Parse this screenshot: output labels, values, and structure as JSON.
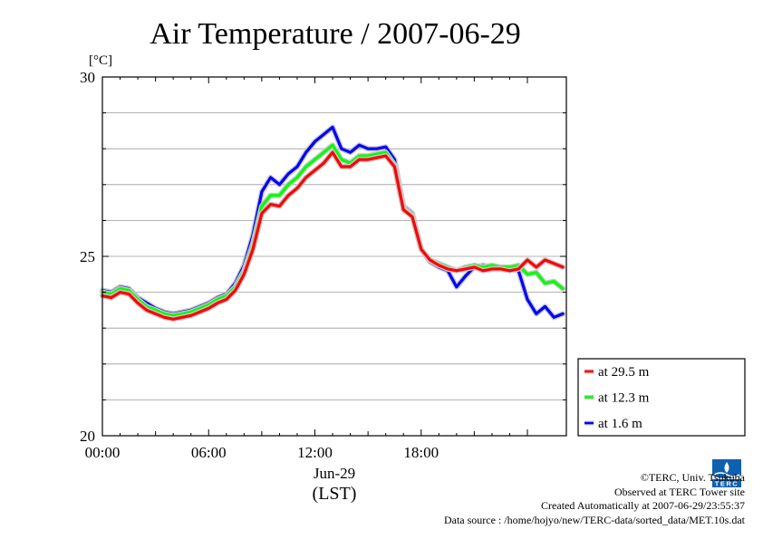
{
  "chart_data": {
    "type": "line",
    "title": "Air Temperature / 2007-06-29",
    "unit_label": "[°C]",
    "xlabel_date": "Jun-29",
    "xlabel_unit": "(LST)",
    "x_ticks": [
      "00:00",
      "06:00",
      "12:00",
      "18:00"
    ],
    "x_tick_hours": [
      0,
      6,
      12,
      18
    ],
    "xlim_hours": [
      0,
      26.2
    ],
    "y_ticks": [
      20,
      25,
      30
    ],
    "ylim": [
      20,
      30
    ],
    "grid": "horizontal",
    "legend_position": "right, below plot top",
    "x_hours": [
      0,
      0.5,
      1,
      1.5,
      2,
      2.5,
      3,
      3.5,
      4,
      4.5,
      5,
      5.5,
      6,
      6.5,
      7,
      7.5,
      8,
      8.5,
      9,
      9.5,
      10,
      10.5,
      11,
      11.5,
      12,
      12.5,
      13,
      13.5,
      14,
      14.5,
      15,
      15.5,
      16,
      16.5,
      17,
      17.5,
      18,
      18.5,
      19,
      19.5,
      20,
      20.5,
      21,
      21.5,
      22,
      22.5,
      23,
      23.5,
      24,
      24.5,
      25,
      25.5,
      26
    ],
    "series": [
      {
        "name": "at 29.5 m",
        "color": "#ff0000",
        "values": [
          23.9,
          23.85,
          24.0,
          23.95,
          23.7,
          23.5,
          23.4,
          23.3,
          23.25,
          23.3,
          23.35,
          23.45,
          23.55,
          23.7,
          23.8,
          24.05,
          24.5,
          25.2,
          26.2,
          26.45,
          26.4,
          26.7,
          26.9,
          27.2,
          27.4,
          27.6,
          27.9,
          27.5,
          27.5,
          27.7,
          27.7,
          27.75,
          27.8,
          27.5,
          26.3,
          26.1,
          25.2,
          24.9,
          24.75,
          24.65,
          24.6,
          24.65,
          24.7,
          24.6,
          24.65,
          24.65,
          24.6,
          24.65,
          24.9,
          24.7,
          24.9,
          24.8,
          24.7
        ]
      },
      {
        "name": "at 12.3 m",
        "color": "#00ff00",
        "values": [
          24.0,
          23.95,
          24.1,
          24.05,
          23.8,
          23.6,
          23.5,
          23.4,
          23.35,
          23.4,
          23.45,
          23.55,
          23.65,
          23.8,
          23.9,
          24.15,
          24.6,
          25.35,
          26.4,
          26.7,
          26.7,
          27.0,
          27.2,
          27.5,
          27.7,
          27.9,
          28.1,
          27.7,
          27.6,
          27.8,
          27.8,
          27.85,
          27.9,
          27.55,
          26.35,
          26.15,
          25.2,
          24.9,
          24.8,
          24.7,
          24.6,
          24.7,
          24.75,
          24.7,
          24.75,
          24.7,
          24.7,
          24.75,
          24.5,
          24.55,
          24.25,
          24.3,
          24.1
        ]
      },
      {
        "name": "at 1.6 m",
        "color": "#0000ff",
        "values": [
          24.05,
          24.0,
          24.15,
          24.1,
          23.85,
          23.7,
          23.55,
          23.45,
          23.4,
          23.45,
          23.5,
          23.6,
          23.7,
          23.85,
          23.95,
          24.25,
          24.75,
          25.6,
          26.8,
          27.2,
          27.0,
          27.3,
          27.5,
          27.9,
          28.2,
          28.4,
          28.6,
          28.0,
          27.9,
          28.1,
          28.0,
          28.0,
          28.05,
          27.7,
          26.4,
          26.2,
          25.2,
          24.85,
          24.7,
          24.6,
          24.15,
          24.45,
          24.7,
          24.75,
          24.7,
          24.65,
          24.7,
          24.6,
          23.8,
          23.4,
          23.6,
          23.3,
          23.4
        ]
      }
    ]
  },
  "credits": {
    "copyright": "©TERC, Univ. Tsukuba",
    "site": "Observed at TERC Tower site",
    "created": "Created Automatically at 2007-06-29/23:55:37",
    "source": "Data source : /home/hojyo/new/TERC-data/sorted_data/MET.10s.dat"
  },
  "logo_text": "TERC"
}
